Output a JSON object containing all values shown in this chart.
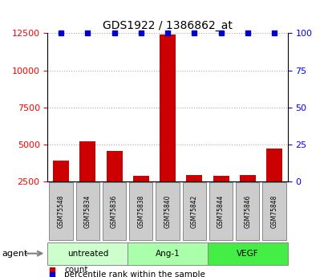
{
  "title": "GDS1922 / 1386862_at",
  "samples": [
    "GSM75548",
    "GSM75834",
    "GSM75836",
    "GSM75838",
    "GSM75840",
    "GSM75842",
    "GSM75844",
    "GSM75846",
    "GSM75848"
  ],
  "counts": [
    3900,
    5200,
    4550,
    2900,
    12400,
    2950,
    2900,
    2950,
    4700
  ],
  "groups": [
    {
      "label": "untreated",
      "indices": [
        0,
        1,
        2
      ],
      "color": "#ccffcc"
    },
    {
      "label": "Ang-1",
      "indices": [
        3,
        4,
        5
      ],
      "color": "#aaffaa"
    },
    {
      "label": "VEGF",
      "indices": [
        6,
        7,
        8
      ],
      "color": "#44ee44"
    }
  ],
  "ylim_left": [
    2500,
    12500
  ],
  "yticks_left": [
    2500,
    5000,
    7500,
    10000,
    12500
  ],
  "yticks_right": [
    0,
    25,
    50,
    75,
    100
  ],
  "bar_color": "#cc0000",
  "dot_color": "#0000cc",
  "sample_box_color": "#cccccc",
  "grid_color": "#aaaaaa",
  "legend_count": "count",
  "legend_pct": "percentile rank within the sample"
}
